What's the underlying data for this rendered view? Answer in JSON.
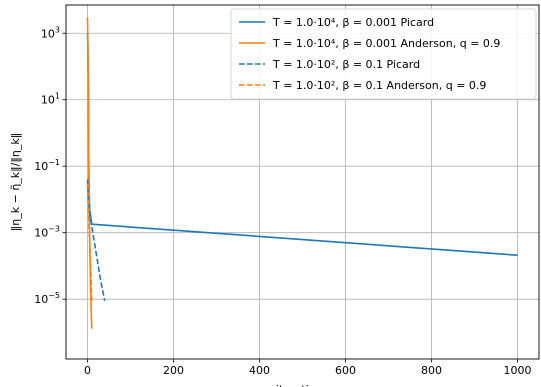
{
  "chart_data": {
    "type": "line",
    "title": "",
    "xlabel": "iterations",
    "ylabel": "‖η_k − η̃_k‖/‖η_k‖",
    "xlim": [
      -50,
      1050
    ],
    "ylim_log10": [
      -6.8,
      3.85
    ],
    "yscale": "log",
    "grid": true,
    "legend_position": "top-right",
    "x_ticks": [
      0,
      200,
      400,
      600,
      800,
      1000
    ],
    "y_ticks": [
      {
        "exp": 3,
        "base": "10",
        "sup": "3"
      },
      {
        "exp": 1,
        "base": "10",
        "sup": "1"
      },
      {
        "exp": -1,
        "base": "10",
        "sup": "−1"
      },
      {
        "exp": -3,
        "base": "10",
        "sup": "−3"
      },
      {
        "exp": -5,
        "base": "10",
        "sup": "−5"
      }
    ],
    "series": [
      {
        "name": "T = 1.0·10⁴,  β = 0.001 Picard",
        "color": "#1f77b4",
        "dash": "solid",
        "points": [
          [
            0,
            1000
          ],
          [
            1,
            300
          ],
          [
            2,
            30
          ],
          [
            3,
            0.08
          ],
          [
            5,
            0.005
          ],
          [
            10,
            0.0018
          ],
          [
            1000,
            0.00021
          ]
        ]
      },
      {
        "name": "T = 1.0·10⁴,  β = 0.001 Anderson, q = 0.9",
        "color": "#ff7f0e",
        "dash": "solid",
        "points": [
          [
            0,
            3000
          ],
          [
            1,
            500
          ],
          [
            2,
            20
          ],
          [
            3,
            0.1
          ],
          [
            4,
            0.003
          ],
          [
            5,
            0.0008
          ],
          [
            7,
            2e-05
          ],
          [
            10,
            1.3e-06
          ]
        ]
      },
      {
        "name": "T = 1.0·10²,  β = 0.1 Picard",
        "color": "#1f77b4",
        "dash": "dashed",
        "points": [
          [
            0,
            0.04
          ],
          [
            2,
            0.01
          ],
          [
            5,
            0.004
          ],
          [
            10,
            0.0015
          ],
          [
            20,
            0.00025
          ],
          [
            30,
            4e-05
          ],
          [
            40,
            9e-06
          ]
        ]
      },
      {
        "name": "T = 1.0·10²,  β = 0.1 Anderson, q = 0.9",
        "color": "#ff7f0e",
        "dash": "dashed",
        "points": [
          [
            0,
            0.03
          ],
          [
            2,
            0.005
          ],
          [
            4,
            0.001
          ],
          [
            6,
            0.0003
          ],
          [
            8,
            5e-05
          ],
          [
            10,
            8e-06
          ]
        ]
      }
    ]
  }
}
